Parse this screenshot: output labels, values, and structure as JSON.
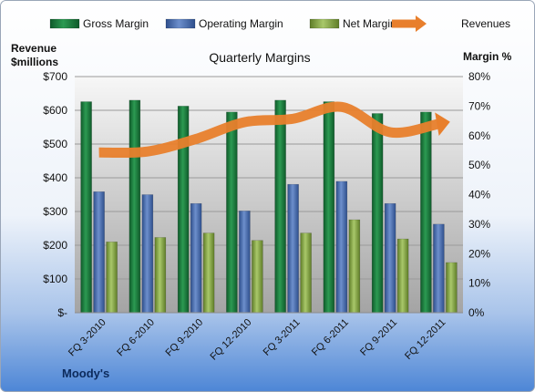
{
  "chart_data": {
    "type": "bar",
    "title": "Quarterly Margins",
    "company": "Moody's",
    "left_axis_label": [
      "Revenue",
      "$millions"
    ],
    "right_axis_label": "Margin %",
    "categories": [
      "FQ 3-2010",
      "FQ 6-2010",
      "FQ 9-2010",
      "FQ 12-2010",
      "FQ 3-2011",
      "FQ 6-2011",
      "FQ 9-2011",
      "FQ 12-2011"
    ],
    "left_ticks": [
      "$-",
      "$100",
      "$200",
      "$300",
      "$400",
      "$500",
      "$600",
      "$700"
    ],
    "right_ticks": [
      "0%",
      "10%",
      "20%",
      "30%",
      "40%",
      "50%",
      "60%",
      "70%",
      "80%"
    ],
    "ylim_left": [
      0,
      700
    ],
    "ylim_right": [
      0,
      80
    ],
    "legend_position": "top",
    "series": [
      {
        "name": "Gross Margin",
        "axis": "right",
        "kind": "bar",
        "color": "#1e7a3e",
        "values": [
          71.5,
          72.0,
          70.0,
          68.0,
          72.0,
          71.5,
          67.5,
          68.0
        ]
      },
      {
        "name": "Operating Margin",
        "axis": "right",
        "kind": "bar",
        "color": "#4a6fb5",
        "values": [
          41.0,
          40.0,
          37.0,
          34.5,
          43.5,
          44.5,
          37.0,
          30.0
        ]
      },
      {
        "name": "Net Margin",
        "axis": "right",
        "kind": "bar",
        "color": "#8fb04a",
        "values": [
          24.0,
          25.5,
          27.0,
          24.5,
          27.0,
          31.5,
          25.0,
          17.0
        ]
      },
      {
        "name": "Revenues",
        "axis": "left",
        "kind": "line",
        "color": "#e87f2c",
        "values": [
          475,
          478,
          515,
          565,
          575,
          610,
          535,
          560
        ]
      }
    ]
  }
}
